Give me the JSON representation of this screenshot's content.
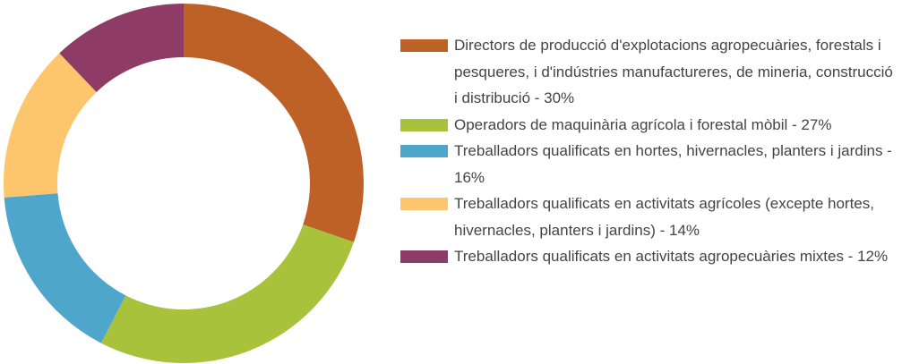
{
  "chart_data": {
    "type": "donut",
    "categories": [
      "Directors de producció d'explotacions agropecuàries, forestals i pesqueres, i d'indústries manufactureres, de mineria, construcció i distribució - 30%",
      "Operadors de maquinària agrícola i forestal mòbil - 27%",
      "Treballadors qualificats en hortes, hivernacles, planters i jardins - 16%",
      "Treballadors qualificats en activitats agrícoles (excepte hortes, hivernacles, planters i jardins) - 14%",
      "Treballadors qualificats en activitats agropecuàries mixtes - 12%"
    ],
    "values": [
      30,
      27,
      16,
      14,
      12
    ],
    "colors": [
      "#bd6127",
      "#a8c23b",
      "#4ea7cb",
      "#fdc66d",
      "#8e3b66"
    ],
    "legend": "right"
  }
}
